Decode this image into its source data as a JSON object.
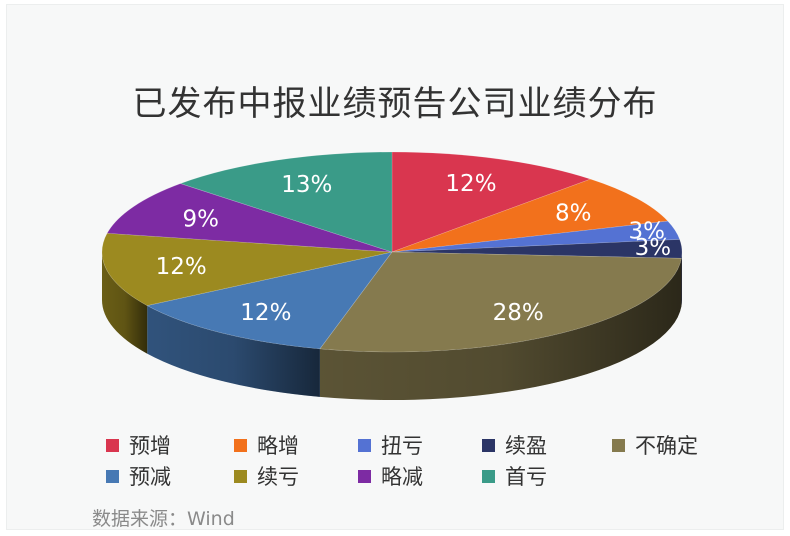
{
  "page": {
    "title": "已发布中报业绩预告公司业绩分布",
    "source": "数据来源：Wind"
  },
  "chart_data": {
    "type": "pie",
    "title": "已发布中报业绩预告公司业绩分布",
    "unit": "%",
    "legend_position": "bottom",
    "series": [
      {
        "label": "预增",
        "value": 12,
        "display": "12%",
        "color": "#d9364f"
      },
      {
        "label": "略增",
        "value": 8,
        "display": "8%",
        "color": "#f2711c"
      },
      {
        "label": "扭亏",
        "value": 3,
        "display": "3%",
        "color": "#5472d3"
      },
      {
        "label": "续盈",
        "value": 3,
        "display": "3%",
        "color": "#2b3566"
      },
      {
        "label": "不确定",
        "value": 28,
        "display": "28%",
        "color": "#857a4e"
      },
      {
        "label": "预减",
        "value": 12,
        "display": "12%",
        "color": "#4779b4"
      },
      {
        "label": "续亏",
        "value": 12,
        "display": "12%",
        "color": "#9c8a20"
      },
      {
        "label": "略减",
        "value": 9,
        "display": "9%",
        "color": "#7d2ba3"
      },
      {
        "label": "首亏",
        "value": 13,
        "display": "13%",
        "color": "#3a9b88"
      }
    ]
  }
}
